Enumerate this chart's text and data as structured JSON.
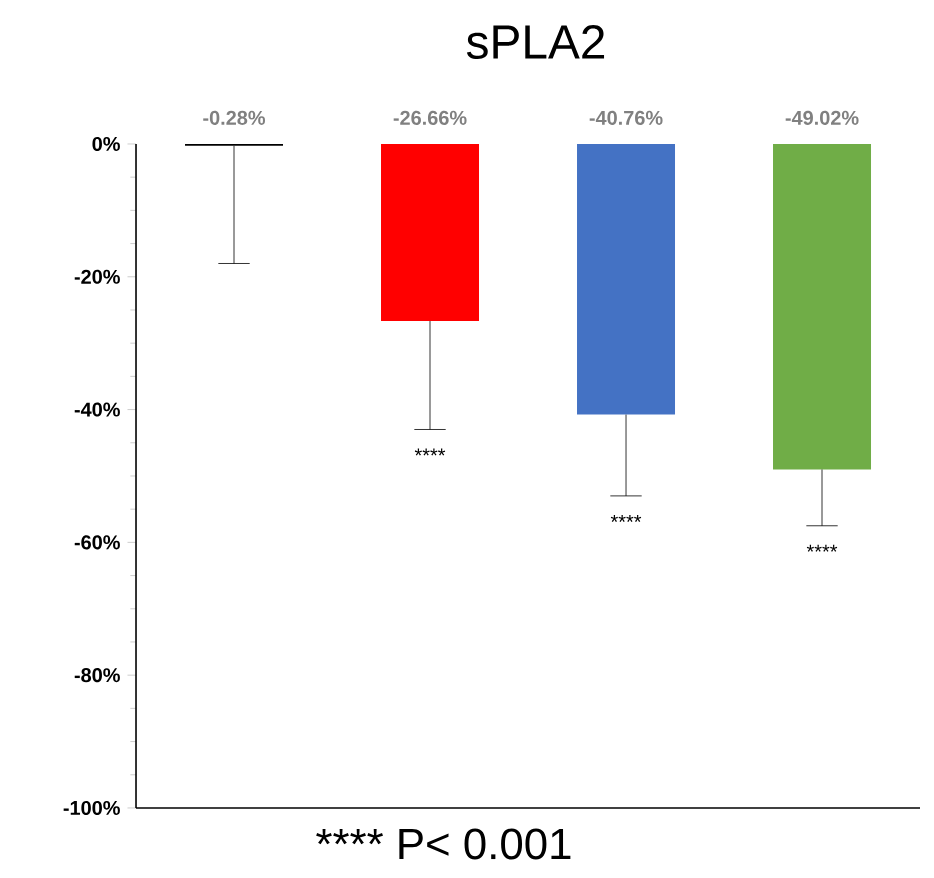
{
  "chart_data": {
    "type": "bar",
    "title": "sPLA2",
    "categories": [
      null,
      null,
      null,
      null
    ],
    "values": [
      -0.28,
      -26.66,
      -40.76,
      -49.02
    ],
    "colors": [
      "#000000",
      "#ff0000",
      "#4472c4",
      "#70ad47"
    ],
    "value_labels": [
      "-0.28%",
      "-26.66%",
      "-40.76%",
      "-49.02%"
    ],
    "errors": [
      [
        -18,
        -0.28
      ],
      [
        -43,
        -26.66
      ],
      [
        -53,
        -40.76
      ],
      [
        -57.5,
        -49.02
      ]
    ],
    "ylim": [
      -100,
      0
    ],
    "yticks": [
      {
        "value": 0,
        "label": "0%"
      },
      {
        "value": -20,
        "label": "-20%"
      },
      {
        "value": -40,
        "label": "-40%"
      },
      {
        "value": -60,
        "label": "-60%"
      },
      {
        "value": -80,
        "label": "-80%"
      },
      {
        "value": -100,
        "label": "-100%"
      }
    ],
    "annotations": [
      "****",
      "****",
      "****",
      "**** P< 0.001"
    ]
  }
}
